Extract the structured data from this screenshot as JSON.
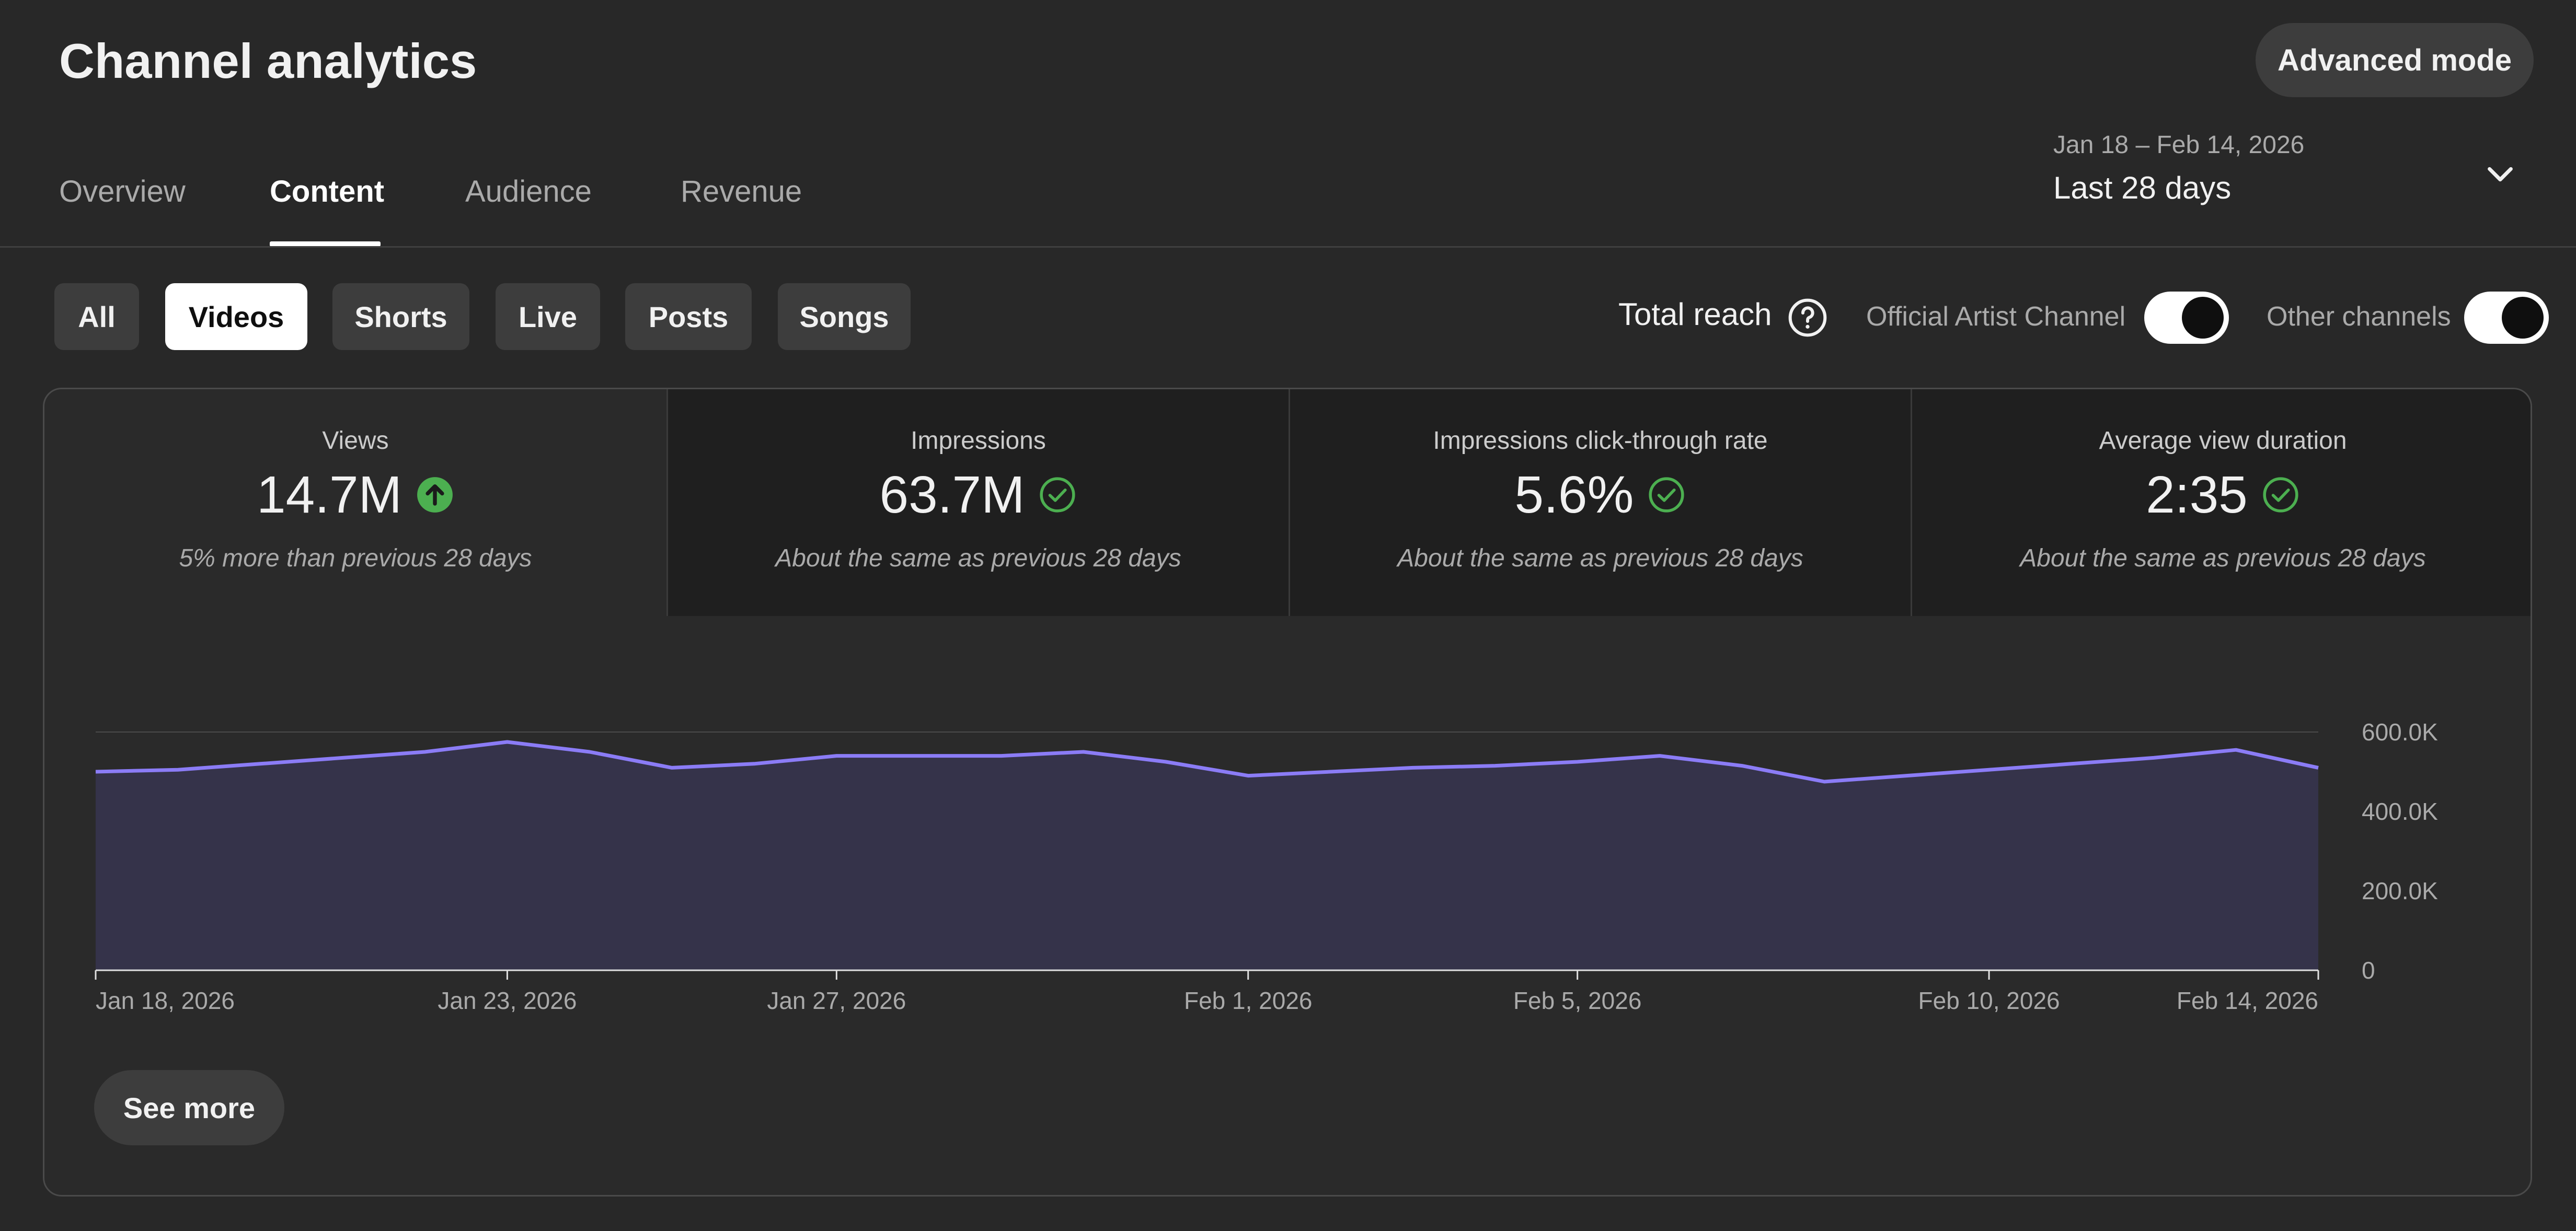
{
  "header": {
    "title": "Channel analytics",
    "advanced_mode_label": "Advanced mode"
  },
  "tabs": [
    {
      "label": "Overview",
      "active": false
    },
    {
      "label": "Content",
      "active": true
    },
    {
      "label": "Audience",
      "active": false
    },
    {
      "label": "Revenue",
      "active": false
    }
  ],
  "date_picker": {
    "range": "Jan 18 – Feb 14, 2026",
    "preset": "Last 28 days",
    "icon": "chevron-down-icon"
  },
  "filter_chips": [
    {
      "label": "All",
      "active": false
    },
    {
      "label": "Videos",
      "active": true
    },
    {
      "label": "Shorts",
      "active": false
    },
    {
      "label": "Live",
      "active": false
    },
    {
      "label": "Posts",
      "active": false
    },
    {
      "label": "Songs",
      "active": false
    }
  ],
  "reach": {
    "label": "Total reach",
    "help_icon": "help-circle-icon",
    "toggles": [
      {
        "label": "Official Artist Channel",
        "on": true
      },
      {
        "label": "Other channels",
        "on": true
      }
    ]
  },
  "metrics": [
    {
      "label": "Views",
      "value": "14.7M",
      "icon": "arrow-up-circle-icon",
      "note": "5% more than previous 28 days",
      "selected": true
    },
    {
      "label": "Impressions",
      "value": "63.7M",
      "icon": "check-circle-icon",
      "note": "About the same as previous 28 days",
      "selected": false
    },
    {
      "label": "Impressions click-through rate",
      "value": "5.6%",
      "icon": "check-circle-icon",
      "note": "About the same as previous 28 days",
      "selected": false
    },
    {
      "label": "Average view duration",
      "value": "2:35",
      "icon": "check-circle-icon",
      "note": "About the same as previous 28 days",
      "selected": false
    }
  ],
  "colors": {
    "accent_line": "#8b7cf6",
    "area_fill": "#35334a",
    "positive": "#4caf50",
    "background": "#282828"
  },
  "chart_data": {
    "type": "area",
    "x": [
      "Jan 18, 2026",
      "Jan 19, 2026",
      "Jan 20, 2026",
      "Jan 21, 2026",
      "Jan 22, 2026",
      "Jan 23, 2026",
      "Jan 24, 2026",
      "Jan 25, 2026",
      "Jan 26, 2026",
      "Jan 27, 2026",
      "Jan 28, 2026",
      "Jan 29, 2026",
      "Jan 30, 2026",
      "Jan 31, 2026",
      "Feb 1, 2026",
      "Feb 2, 2026",
      "Feb 3, 2026",
      "Feb 4, 2026",
      "Feb 5, 2026",
      "Feb 6, 2026",
      "Feb 7, 2026",
      "Feb 8, 2026",
      "Feb 9, 2026",
      "Feb 10, 2026",
      "Feb 11, 2026",
      "Feb 12, 2026",
      "Feb 13, 2026",
      "Feb 14, 2026"
    ],
    "series": [
      {
        "values": [
          500,
          505,
          520,
          535,
          550,
          575,
          550,
          510,
          520,
          540,
          540,
          540,
          550,
          525,
          490,
          500,
          510,
          515,
          525,
          540,
          515,
          475,
          490,
          505,
          520,
          535,
          555,
          510
        ]
      }
    ],
    "x_ticks": [
      "Jan 18, 2026",
      "Jan 23, 2026",
      "Jan 27, 2026",
      "Feb 1, 2026",
      "Feb 5, 2026",
      "Feb 10, 2026",
      "Feb 14, 2026"
    ],
    "y_ticks": [
      {
        "value": 0,
        "label": "0"
      },
      {
        "value": 200,
        "label": "200.0K"
      },
      {
        "value": 400,
        "label": "400.0K"
      },
      {
        "value": 600,
        "label": "600.0K"
      }
    ],
    "ylim": [
      0,
      600
    ],
    "grid": true,
    "y_axis_side": "right"
  },
  "see_more_label": "See more"
}
